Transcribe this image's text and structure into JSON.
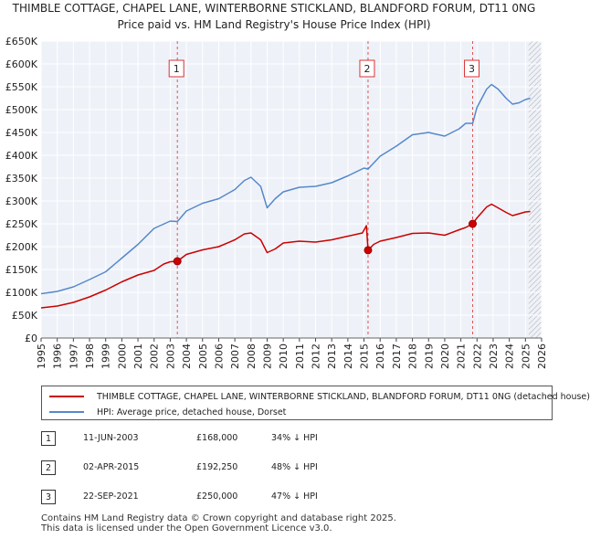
{
  "chart_data": {
    "type": "line",
    "title_line1": "THIMBLE COTTAGE, CHAPEL LANE, WINTERBORNE STICKLAND, BLANDFORD FORUM, DT11 0NG",
    "title_line2": "Price paid vs. HM Land Registry's House Price Index (HPI)",
    "x_tick_labels": [
      "1995",
      "1996",
      "1997",
      "1998",
      "1999",
      "2000",
      "2001",
      "2002",
      "2003",
      "2004",
      "2005",
      "2006",
      "2007",
      "2008",
      "2009",
      "2010",
      "2011",
      "2012",
      "2013",
      "2014",
      "2015",
      "2016",
      "2017",
      "2018",
      "2019",
      "2020",
      "2021",
      "2022",
      "2023",
      "2024",
      "2025",
      "2026"
    ],
    "y_tick_labels": [
      "£0",
      "£50K",
      "£100K",
      "£150K",
      "£200K",
      "£250K",
      "£300K",
      "£350K",
      "£400K",
      "£450K",
      "£500K",
      "£550K",
      "£600K",
      "£650K"
    ],
    "y_tick_values": [
      0,
      50000,
      100000,
      150000,
      200000,
      250000,
      300000,
      350000,
      400000,
      450000,
      500000,
      550000,
      600000,
      650000
    ],
    "xlim": [
      1995,
      2026
    ],
    "ylim": [
      0,
      650000
    ],
    "grid": true,
    "forecast_from": 2025.2,
    "series": [
      {
        "name": "THIMBLE COTTAGE, CHAPEL LANE, WINTERBORNE STICKLAND, BLANDFORD FORUM, DT11 0NG (detached house)",
        "color": "#cc0000",
        "x": [
          1995,
          1996,
          1997,
          1998,
          1999,
          2000,
          2001,
          2002,
          2002.6,
          2003.0,
          2003.44,
          2004,
          2005,
          2006,
          2007,
          2007.6,
          2008,
          2008.6,
          2009.0,
          2009.5,
          2010,
          2011,
          2012,
          2013,
          2014,
          2014.9,
          2015.15,
          2015.25,
          2015.6,
          2016,
          2017,
          2018,
          2019,
          2020,
          2020.9,
          2021.3,
          2021.73,
          2022,
          2022.6,
          2022.9,
          2023.3,
          2023.8,
          2024.2,
          2024.6,
          2025.0,
          2025.3
        ],
        "y": [
          66000,
          70000,
          78000,
          90000,
          105000,
          123000,
          138000,
          148000,
          162000,
          167000,
          168000,
          183000,
          193000,
          200000,
          215000,
          228000,
          230000,
          215000,
          187000,
          195000,
          208000,
          212000,
          210000,
          215000,
          223000,
          230000,
          246000,
          192250,
          205000,
          212000,
          220000,
          229000,
          230000,
          225000,
          237000,
          242000,
          250000,
          263000,
          287000,
          293000,
          285000,
          275000,
          268000,
          272000,
          276000,
          277000
        ]
      },
      {
        "name": "HPI: Average price, detached house, Dorset",
        "color": "#5588cc",
        "x": [
          1995,
          1996,
          1997,
          1998,
          1999,
          2000,
          2001,
          2002,
          2003,
          2003.44,
          2004,
          2005,
          2006,
          2007,
          2007.6,
          2008,
          2008.6,
          2009.0,
          2009.5,
          2010,
          2011,
          2012,
          2013,
          2014,
          2015,
          2015.25,
          2016,
          2017,
          2018,
          2019,
          2020,
          2020.9,
          2021.3,
          2021.73,
          2022,
          2022.6,
          2022.9,
          2023.3,
          2023.8,
          2024.2,
          2024.6,
          2025.0,
          2025.3
        ],
        "y": [
          97000,
          102000,
          112000,
          128000,
          145000,
          175000,
          205000,
          240000,
          256000,
          255000,
          278000,
          295000,
          305000,
          325000,
          345000,
          352000,
          332000,
          285000,
          305000,
          320000,
          330000,
          332000,
          340000,
          355000,
          372000,
          370000,
          398000,
          420000,
          445000,
          450000,
          442000,
          458000,
          470000,
          470000,
          505000,
          545000,
          555000,
          545000,
          525000,
          512000,
          515000,
          522000,
          525000
        ]
      }
    ],
    "markers": [
      {
        "label": "1",
        "x": 2003.44,
        "y": 168000
      },
      {
        "label": "2",
        "x": 2015.25,
        "y": 192250
      },
      {
        "label": "3",
        "x": 2021.73,
        "y": 250000
      }
    ]
  },
  "legend": {
    "series1_label": "THIMBLE COTTAGE, CHAPEL LANE, WINTERBORNE STICKLAND, BLANDFORD FORUM, DT11 0NG (detached house)",
    "series2_label": "HPI: Average price, detached house, Dorset",
    "series1_color": "#cc0000",
    "series2_color": "#5588cc"
  },
  "table": {
    "rows": [
      {
        "num": "1",
        "date": "11-JUN-2003",
        "price": "£168,000",
        "hpi": "34% ↓ HPI"
      },
      {
        "num": "2",
        "date": "02-APR-2015",
        "price": "£192,250",
        "hpi": "48% ↓ HPI"
      },
      {
        "num": "3",
        "date": "22-SEP-2021",
        "price": "£250,000",
        "hpi": "47% ↓ HPI"
      }
    ]
  },
  "footer": {
    "line1": "Contains HM Land Registry data © Crown copyright and database right 2025.",
    "line2": "This data is licensed under the Open Government Licence v3.0."
  }
}
